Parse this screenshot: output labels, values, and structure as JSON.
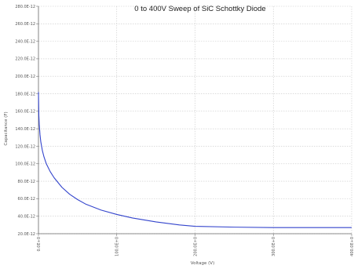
{
  "chart_data": {
    "type": "line",
    "title": "0 to 400V Sweep of SiC Schottky Diode",
    "xlabel": "Voltage (V)",
    "ylabel": "Capacitance (F)",
    "xlim": [
      0,
      400
    ],
    "ylim": [
      2e-11,
      2.8e-10
    ],
    "x_ticks": [
      0,
      100,
      200,
      300,
      400
    ],
    "x_tick_labels": [
      "0.0E+0",
      "100.0E+0",
      "200.0E+0",
      "300.0E+0",
      "400.0E+0"
    ],
    "y_ticks": [
      2e-11,
      4e-11,
      6e-11,
      8e-11,
      1e-10,
      1.2e-10,
      1.4e-10,
      1.6e-10,
      1.8e-10,
      2e-10,
      2.2e-10,
      2.4e-10,
      2.6e-10,
      2.8e-10
    ],
    "y_tick_labels": [
      "20.0E-12",
      "40.0E-12",
      "60.0E-12",
      "80.0E-12",
      "100.0E-12",
      "120.0E-12",
      "140.0E-12",
      "160.0E-12",
      "180.0E-12",
      "200.0E-12",
      "220.0E-12",
      "240.0E-12",
      "260.0E-12",
      "280.0E-12"
    ],
    "grid": true,
    "line_color": "#3344cc",
    "series": [
      {
        "x": [
          0,
          0.5,
          1,
          2,
          3,
          5,
          7,
          10,
          15,
          20,
          30,
          40,
          50,
          60,
          80,
          100,
          120,
          150,
          180,
          200,
          250,
          300,
          350,
          400
        ],
        "y": [
          1.82e-10,
          1.55e-10,
          1.45e-10,
          1.33e-10,
          1.25e-10,
          1.15e-10,
          1.08e-10,
          1e-10,
          9.1e-11,
          8.4e-11,
          7.3e-11,
          6.5e-11,
          5.9e-11,
          5.4e-11,
          4.7e-11,
          4.2e-11,
          3.8e-11,
          3.35e-11,
          3e-11,
          2.85e-11,
          2.75e-11,
          2.7e-11,
          2.7e-11,
          2.7e-11
        ]
      }
    ]
  }
}
